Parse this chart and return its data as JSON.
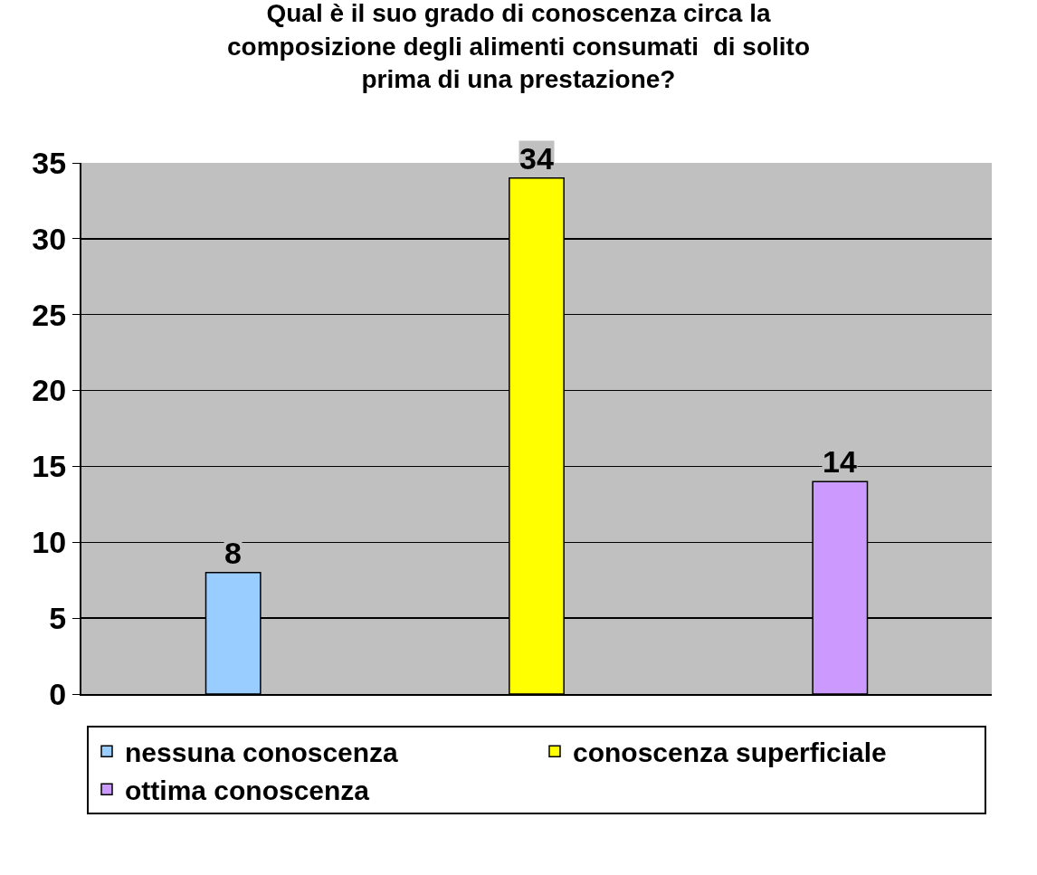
{
  "chart_data": {
    "type": "bar",
    "title": "Qual è il suo grado di conoscenza circa la\ncomposizione degli alimenti consumati  di solito\nprima di una prestazione?",
    "categories": [
      null,
      null,
      null
    ],
    "series": [
      {
        "name": "nessuna conoscenza",
        "color": "#99ccff",
        "values": [
          8,
          null,
          null
        ]
      },
      {
        "name": "conoscenza superficiale",
        "color": "#ffff00",
        "values": [
          null,
          34,
          null
        ]
      },
      {
        "name": "ottima conoscenza",
        "color": "#cc99ff",
        "values": [
          null,
          null,
          14
        ]
      }
    ],
    "ylim": [
      0,
      35
    ],
    "yticks": [
      0,
      5,
      10,
      15,
      20,
      25,
      30,
      35
    ],
    "grid": "y",
    "legend": "bottom",
    "data_labels": true,
    "tick_labels": "y"
  }
}
